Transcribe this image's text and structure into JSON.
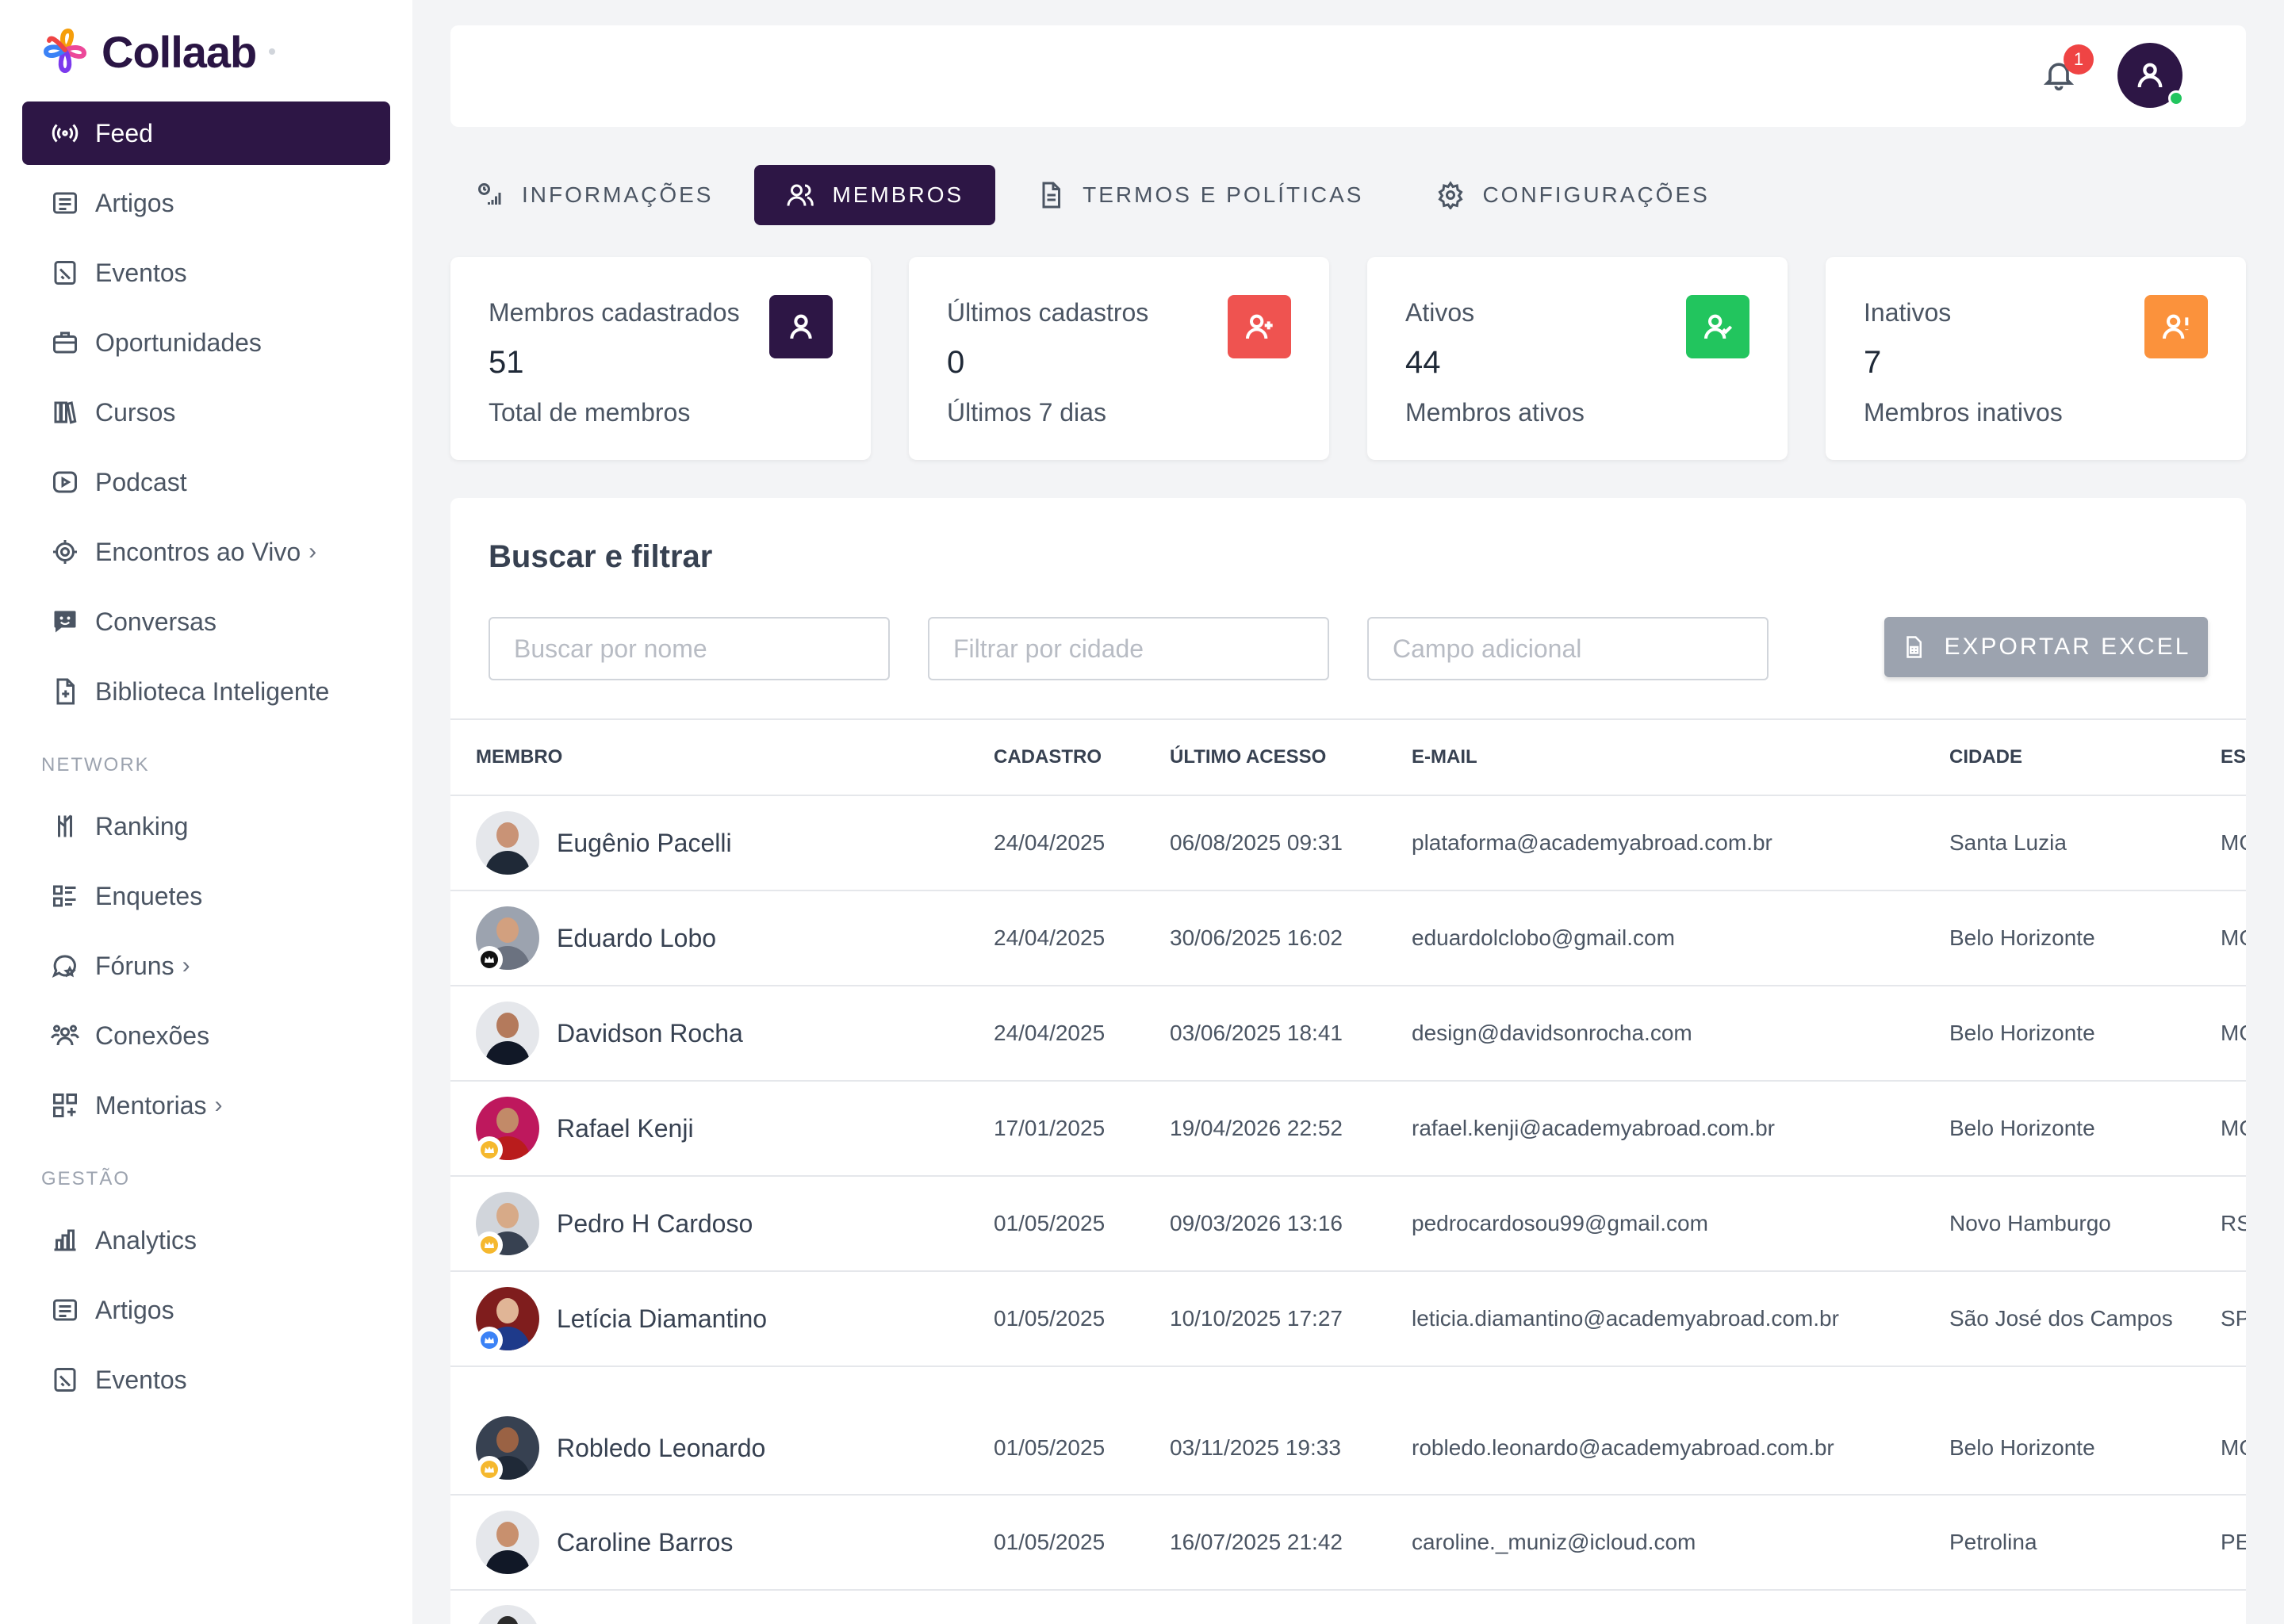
{
  "app": {
    "name": "Collaab"
  },
  "sidebar": {
    "items": [
      {
        "label": "Feed",
        "icon": "broadcast-icon",
        "active": true
      },
      {
        "label": "Artigos",
        "icon": "article-icon"
      },
      {
        "label": "Eventos",
        "icon": "calendar-icon"
      },
      {
        "label": "Oportunidades",
        "icon": "briefcase-icon"
      },
      {
        "label": "Cursos",
        "icon": "books-icon"
      },
      {
        "label": "Podcast",
        "icon": "play-icon"
      },
      {
        "label": "Encontros ao Vivo",
        "icon": "live-icon",
        "chevron": true
      },
      {
        "label": "Conversas",
        "icon": "chat-icon"
      },
      {
        "label": "Biblioteca Inteligente",
        "icon": "file-plus-icon"
      }
    ],
    "network_label": "NETWORK",
    "network_items": [
      {
        "label": "Ranking",
        "icon": "ranking-icon"
      },
      {
        "label": "Enquetes",
        "icon": "list-icon"
      },
      {
        "label": "Fóruns",
        "icon": "forum-icon",
        "chevron": true
      },
      {
        "label": "Conexões",
        "icon": "users-icon"
      },
      {
        "label": "Mentorias",
        "icon": "grid-icon",
        "chevron": true
      }
    ],
    "gestao_label": "GESTÃO",
    "gestao_items": [
      {
        "label": "Analytics",
        "icon": "analytics-icon"
      },
      {
        "label": "Artigos",
        "icon": "article-icon"
      },
      {
        "label": "Eventos",
        "icon": "calendar-icon"
      }
    ]
  },
  "topbar": {
    "notification_count": "1"
  },
  "tabs": [
    {
      "label": "INFORMAÇÕES",
      "icon": "info-chart-icon"
    },
    {
      "label": "MEMBROS",
      "icon": "members-icon",
      "active": true
    },
    {
      "label": "TERMOS E POLÍTICAS",
      "icon": "document-icon"
    },
    {
      "label": "CONFIGURAÇÕES",
      "icon": "gear-icon"
    }
  ],
  "stats": [
    {
      "label": "Membros cadastrados",
      "value": "51",
      "sub": "Total de membros",
      "color": "#2d1645"
    },
    {
      "label": "Últimos cadastros",
      "value": "0",
      "sub": "Últimos 7 dias",
      "color": "#ef5350"
    },
    {
      "label": "Ativos",
      "value": "44",
      "sub": "Membros ativos",
      "color": "#22c55e"
    },
    {
      "label": "Inativos",
      "value": "7",
      "sub": "Membros inativos",
      "color": "#fb923c"
    }
  ],
  "filter": {
    "title": "Buscar e filtrar",
    "search_placeholder": "Buscar por nome",
    "city_placeholder": "Filtrar por cidade",
    "extra_placeholder": "Campo adicional",
    "export_label": "EXPORTAR EXCEL"
  },
  "table": {
    "headers": [
      "MEMBRO",
      "CADASTRO",
      "ÚLTIMO ACESSO",
      "E-MAIL",
      "CIDADE",
      "ES"
    ],
    "rows": [
      {
        "name": "Eugênio Pacelli",
        "cadastro": "24/04/2025",
        "ultimo": "06/08/2025 09:31",
        "email": "plataforma@academyabroad.com.br",
        "cidade": "Santa Luzia",
        "estado": "MG",
        "crown": ""
      },
      {
        "name": "Eduardo Lobo",
        "cadastro": "24/04/2025",
        "ultimo": "30/06/2025 16:02",
        "email": "eduardolclobo@gmail.com",
        "cidade": "Belo Horizonte",
        "estado": "MG",
        "crown": "#111111"
      },
      {
        "name": "Davidson Rocha",
        "cadastro": "24/04/2025",
        "ultimo": "03/06/2025 18:41",
        "email": "design@davidsonrocha.com",
        "cidade": "Belo Horizonte",
        "estado": "MG",
        "crown": ""
      },
      {
        "name": "Rafael Kenji",
        "cadastro": "17/01/2025",
        "ultimo": "19/04/2026 22:52",
        "email": "rafael.kenji@academyabroad.com.br",
        "cidade": "Belo Horizonte",
        "estado": "MG",
        "crown": "#f5b82e"
      },
      {
        "name": "Pedro H Cardoso",
        "cadastro": "01/05/2025",
        "ultimo": "09/03/2026 13:16",
        "email": "pedrocardosou99@gmail.com",
        "cidade": "Novo Hamburgo",
        "estado": "RS",
        "crown": "#f5b82e"
      },
      {
        "name": "Letícia Diamantino",
        "cadastro": "01/05/2025",
        "ultimo": "10/10/2025 17:27",
        "email": "leticia.diamantino@academyabroad.com.br",
        "cidade": "São José dos Campos",
        "estado": "SP",
        "crown": "#3b82f6"
      },
      {
        "name": "Robledo Leonardo",
        "cadastro": "01/05/2025",
        "ultimo": "03/11/2025 19:33",
        "email": "robledo.leonardo@academyabroad.com.br",
        "cidade": "Belo Horizonte",
        "estado": "MG",
        "crown": "#f5b82e"
      },
      {
        "name": "Caroline Barros",
        "cadastro": "01/05/2025",
        "ultimo": "16/07/2025 21:42",
        "email": "caroline._muniz@icloud.com",
        "cidade": "Petrolina",
        "estado": "PE",
        "crown": ""
      }
    ]
  }
}
